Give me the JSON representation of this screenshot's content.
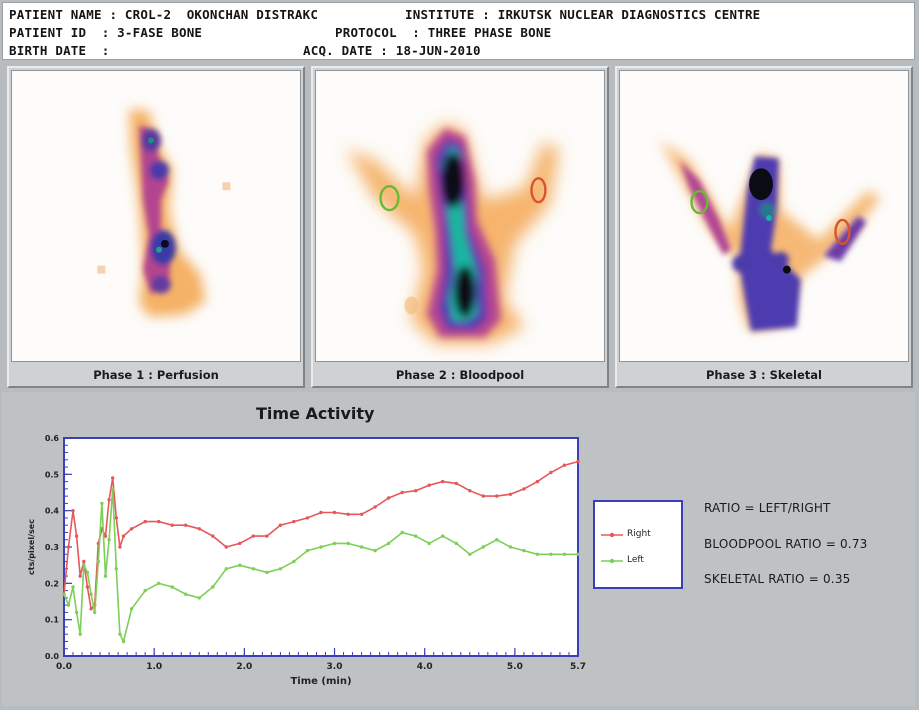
{
  "header": {
    "patient_name_label": "PATIENT NAME",
    "patient_name": "CROL-2  OKONCHAN DISTRAKC",
    "institute_label": "INSTITUTE",
    "institute": "IRKUTSK NUCLEAR DIAGNOSTICS CENTRE",
    "patient_id_label": "PATIENT ID",
    "patient_id": "3-FASE BONE",
    "protocol_label": "PROTOCOL",
    "protocol": "THREE PHASE BONE",
    "birth_date_label": "BIRTH DATE",
    "birth_date": "",
    "acq_date_label": "ACQ. DATE",
    "acq_date": "18-JUN-2010"
  },
  "panels": [
    {
      "label": "Phase 1 : Perfusion"
    },
    {
      "label": "Phase 2 : Bloodpool"
    },
    {
      "label": "Phase 3 : Skeletal"
    }
  ],
  "colors": {
    "right_roi": "#d9532b",
    "left_roi": "#66bb33",
    "right_series": "#e5585a",
    "left_series": "#7ccf57",
    "plot_border": "#3b3fb8"
  },
  "chart_data": {
    "type": "line",
    "title": "Time Activity",
    "xlabel": "Time (min)",
    "ylabel": "cts/pixel/sec",
    "xlim": [
      0,
      5.7
    ],
    "ylim": [
      0,
      0.6
    ],
    "x_ticks": [
      "0.0",
      "1.0",
      "2.0",
      "3.0",
      "4.0",
      "5.0",
      "5.7"
    ],
    "x_tick_values": [
      0.0,
      1.0,
      2.0,
      3.0,
      4.0,
      5.0,
      5.7
    ],
    "y_ticks": [
      "0.0",
      "0.1",
      "0.2",
      "0.3",
      "0.4",
      "0.5",
      "0.6"
    ],
    "y_tick_values": [
      0.0,
      0.1,
      0.2,
      0.3,
      0.4,
      0.5,
      0.6
    ],
    "series": [
      {
        "name": "Right",
        "color": "#e5585a",
        "x": [
          0.0,
          0.05,
          0.1,
          0.14,
          0.18,
          0.22,
          0.26,
          0.3,
          0.34,
          0.38,
          0.42,
          0.46,
          0.5,
          0.54,
          0.58,
          0.62,
          0.66,
          0.75,
          0.9,
          1.05,
          1.2,
          1.35,
          1.5,
          1.65,
          1.8,
          1.95,
          2.1,
          2.25,
          2.4,
          2.55,
          2.7,
          2.85,
          3.0,
          3.15,
          3.3,
          3.45,
          3.6,
          3.75,
          3.9,
          4.05,
          4.2,
          4.35,
          4.5,
          4.65,
          4.8,
          4.95,
          5.1,
          5.25,
          5.4,
          5.55,
          5.7
        ],
        "y": [
          0.17,
          0.3,
          0.4,
          0.33,
          0.22,
          0.26,
          0.19,
          0.13,
          0.14,
          0.31,
          0.35,
          0.33,
          0.43,
          0.49,
          0.38,
          0.3,
          0.33,
          0.35,
          0.37,
          0.37,
          0.36,
          0.36,
          0.35,
          0.33,
          0.3,
          0.31,
          0.33,
          0.33,
          0.36,
          0.37,
          0.38,
          0.395,
          0.395,
          0.39,
          0.39,
          0.41,
          0.435,
          0.45,
          0.455,
          0.47,
          0.48,
          0.475,
          0.455,
          0.44,
          0.44,
          0.445,
          0.46,
          0.48,
          0.505,
          0.525,
          0.535
        ]
      },
      {
        "name": "Left",
        "color": "#7ccf57",
        "x": [
          0.0,
          0.05,
          0.1,
          0.14,
          0.18,
          0.22,
          0.26,
          0.3,
          0.34,
          0.38,
          0.42,
          0.46,
          0.5,
          0.54,
          0.58,
          0.62,
          0.66,
          0.75,
          0.9,
          1.05,
          1.2,
          1.35,
          1.5,
          1.65,
          1.8,
          1.95,
          2.1,
          2.25,
          2.4,
          2.55,
          2.7,
          2.85,
          3.0,
          3.15,
          3.3,
          3.45,
          3.6,
          3.75,
          3.9,
          4.05,
          4.2,
          4.35,
          4.5,
          4.65,
          4.8,
          4.95,
          5.1,
          5.25,
          5.4,
          5.55,
          5.7
        ],
        "y": [
          0.17,
          0.14,
          0.19,
          0.12,
          0.06,
          0.25,
          0.23,
          0.17,
          0.12,
          0.26,
          0.42,
          0.22,
          0.32,
          0.46,
          0.24,
          0.06,
          0.04,
          0.13,
          0.18,
          0.2,
          0.19,
          0.17,
          0.16,
          0.19,
          0.24,
          0.25,
          0.24,
          0.23,
          0.24,
          0.26,
          0.29,
          0.3,
          0.31,
          0.31,
          0.3,
          0.29,
          0.31,
          0.34,
          0.33,
          0.31,
          0.33,
          0.31,
          0.28,
          0.3,
          0.32,
          0.3,
          0.29,
          0.28,
          0.28,
          0.28,
          0.28
        ]
      }
    ],
    "legend_position": "right"
  },
  "ratios": {
    "formula": "RATIO = LEFT/RIGHT",
    "bloodpool": "BLOODPOOL RATIO = 0.73",
    "skeletal": "SKELETAL  RATIO = 0.35"
  }
}
